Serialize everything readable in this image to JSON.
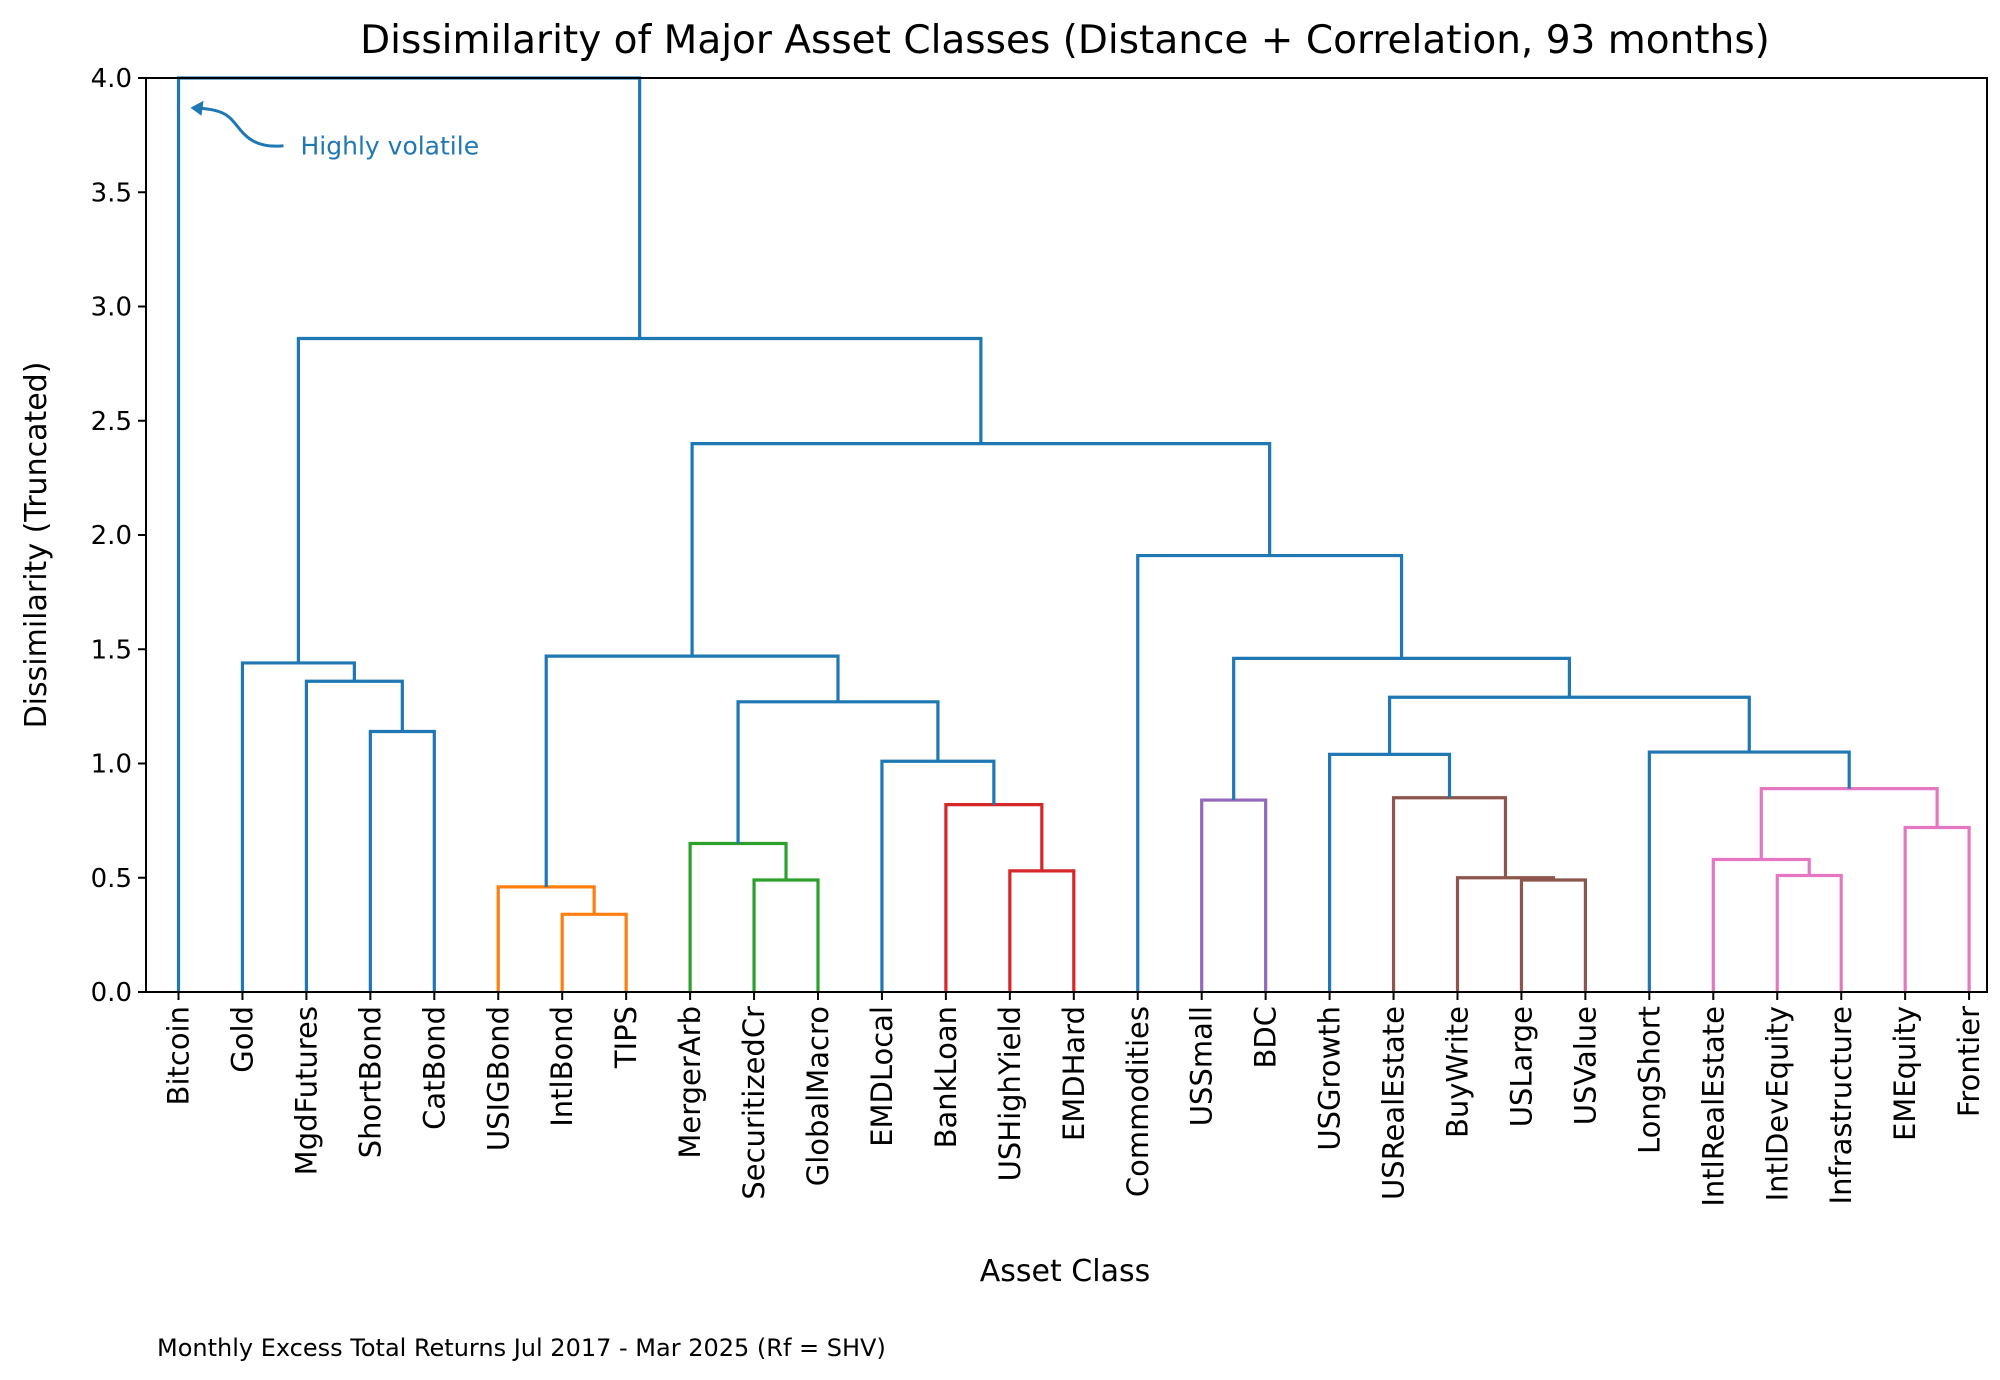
{
  "chart_data": {
    "type": "dendrogram",
    "title": "Dissimilarity of Major Asset Classes (Distance + Correlation, 93 months)",
    "xlabel": "Asset Class",
    "ylabel": "Dissimilarity (Truncated)",
    "ylim": [
      0,
      4.0
    ],
    "yticks": [
      "0.0",
      "0.5",
      "1.0",
      "1.5",
      "2.0",
      "2.5",
      "3.0",
      "3.5",
      "4.0"
    ],
    "grid": false,
    "leaves": [
      "Bitcoin",
      "Gold",
      "MgdFutures",
      "ShortBond",
      "CatBond",
      "USIGBond",
      "IntlBond",
      "TIPS",
      "MergerArb",
      "SecuritizedCr",
      "GlobalMacro",
      "EMDLocal",
      "BankLoan",
      "USHighYield",
      "EMDHard",
      "Commodities",
      "USSmall",
      "BDC",
      "USGrowth",
      "USRealEstate",
      "BuyWrite",
      "USLarge",
      "USValue",
      "LongShort",
      "IntlRealEstate",
      "IntlDevEquity",
      "Infrastructure",
      "EMEquity",
      "Frontier"
    ],
    "cluster_colors": {
      "above_threshold": "#1f77b4",
      "C1": "#ff7f0e",
      "C2": "#2ca02c",
      "C3": "#d62728",
      "C4": "#9467bd",
      "C5": "#8c564b",
      "C6": "#e377c2"
    },
    "merges": [
      {
        "left": "IntlBond",
        "right": "TIPS",
        "height": 0.34,
        "color": "C1"
      },
      {
        "left": "USIGBond",
        "right": "m1",
        "height": 0.46,
        "color": "C1"
      },
      {
        "left": "SecuritizedCr",
        "right": "GlobalMacro",
        "height": 0.49,
        "color": "C2"
      },
      {
        "left": "MergerArb",
        "right": "m3",
        "height": 0.65,
        "color": "C2"
      },
      {
        "left": "USHighYield",
        "right": "EMDHard",
        "height": 0.53,
        "color": "C3"
      },
      {
        "left": "BankLoan",
        "right": "m5",
        "height": 0.82,
        "color": "C3"
      },
      {
        "left": "USSmall",
        "right": "BDC",
        "height": 0.84,
        "color": "C4"
      },
      {
        "left": "USLarge",
        "right": "USValue",
        "height": 0.49,
        "color": "C5"
      },
      {
        "left": "BuyWrite",
        "right": "m8",
        "height": 0.5,
        "color": "C5"
      },
      {
        "left": "USRealEstate",
        "right": "m9",
        "height": 0.85,
        "color": "C5"
      },
      {
        "left": "IntlDevEquity",
        "right": "Infrastructure",
        "height": 0.51,
        "color": "C6"
      },
      {
        "left": "IntlRealEstate",
        "right": "m11",
        "height": 0.58,
        "color": "C6"
      },
      {
        "left": "EMEquity",
        "right": "Frontier",
        "height": 0.72,
        "color": "C6"
      },
      {
        "left": "m12",
        "right": "m13",
        "height": 0.89,
        "color": "C6"
      },
      {
        "left": "ShortBond",
        "right": "CatBond",
        "height": 1.14,
        "color": "above_threshold"
      },
      {
        "left": "MgdFutures",
        "right": "m15",
        "height": 1.36,
        "color": "above_threshold"
      },
      {
        "left": "Gold",
        "right": "m16",
        "height": 1.44,
        "color": "above_threshold"
      },
      {
        "left": "EMDLocal",
        "right": "m6",
        "height": 1.01,
        "color": "above_threshold"
      },
      {
        "left": "m4",
        "right": "m18",
        "height": 1.27,
        "color": "above_threshold"
      },
      {
        "left": "m2",
        "right": "m19",
        "height": 1.47,
        "color": "above_threshold"
      },
      {
        "left": "USGrowth",
        "right": "m10",
        "height": 1.04,
        "color": "above_threshold"
      },
      {
        "left": "LongShort",
        "right": "m14",
        "height": 1.05,
        "color": "above_threshold"
      },
      {
        "left": "m21",
        "right": "m22",
        "height": 1.29,
        "color": "above_threshold"
      },
      {
        "left": "m7",
        "right": "m23",
        "height": 1.46,
        "color": "above_threshold"
      },
      {
        "left": "Commodities",
        "right": "m24",
        "height": 1.91,
        "color": "above_threshold"
      },
      {
        "left": "m20",
        "right": "m25",
        "height": 2.4,
        "color": "above_threshold"
      },
      {
        "left": "m17",
        "right": "m26",
        "height": 2.86,
        "color": "above_threshold"
      },
      {
        "left": "Bitcoin",
        "right": "m27",
        "height": 4.0,
        "color": "above_threshold",
        "truncated": true
      }
    ],
    "annotations": [
      {
        "text": "Highly volatile",
        "target": "Bitcoin",
        "target_y": 3.87,
        "color": "#1f77b4"
      }
    ],
    "footnote": "Monthly Excess Total Returns Jul 2017 - Mar 2025 (Rf = SHV)"
  }
}
